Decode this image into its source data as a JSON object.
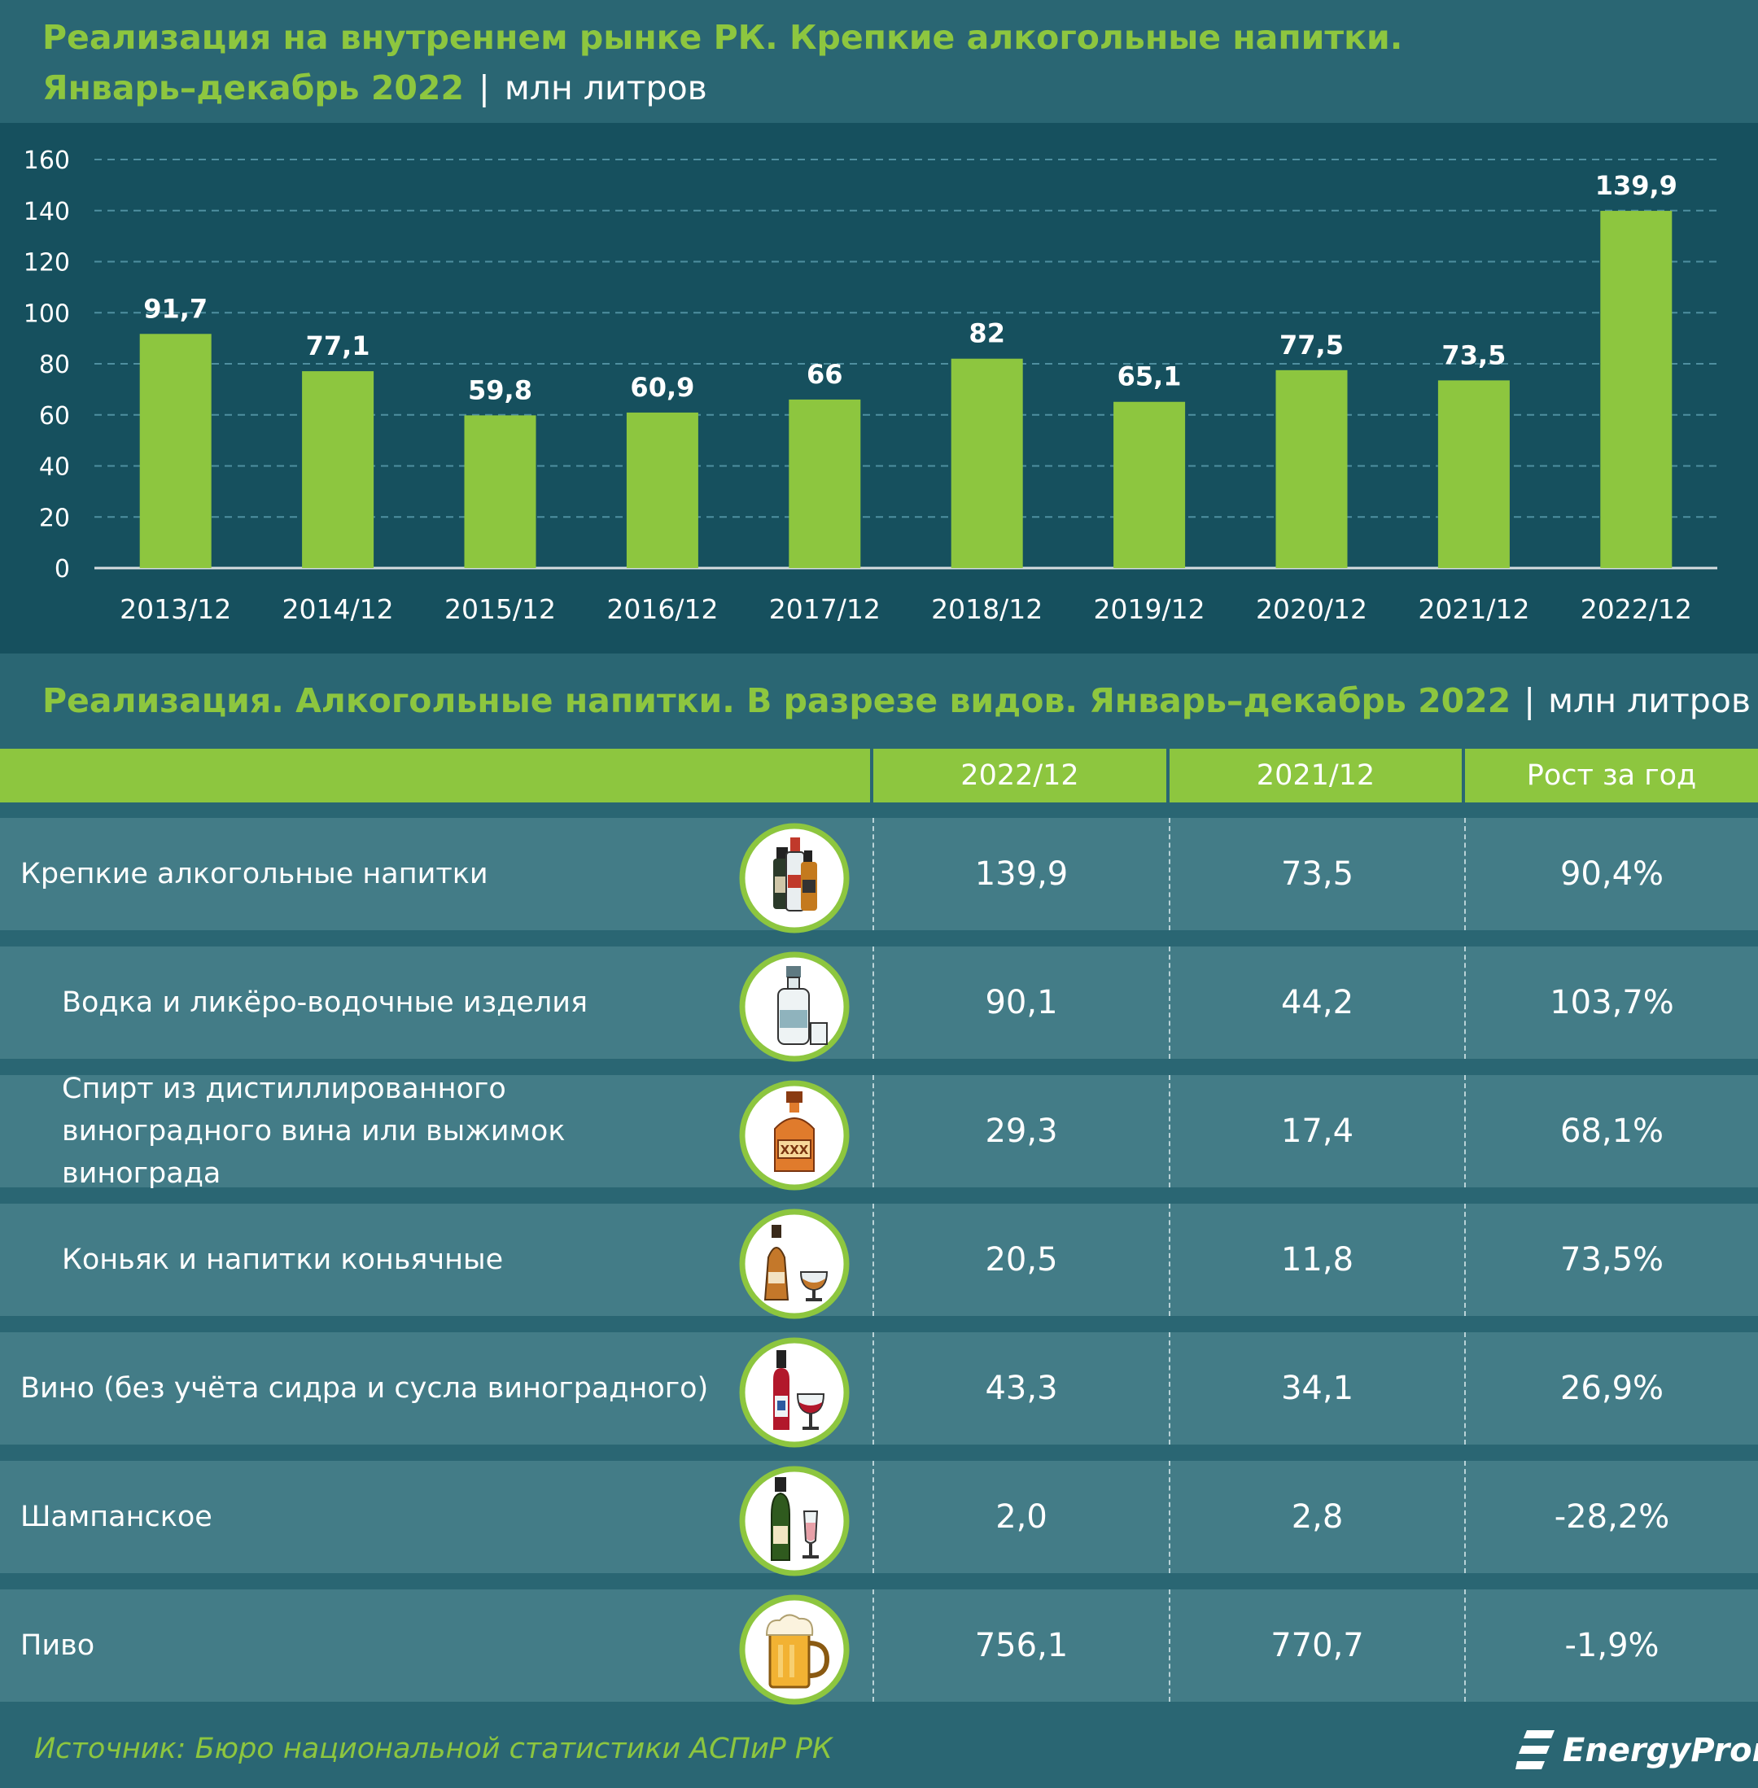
{
  "header": {
    "title_line1": "Реализация на внутреннем рынке РК. Крепкие алкогольные напитки.",
    "title_period": "Январь–декабрь 2022",
    "separator": "|",
    "unit": "млн литров"
  },
  "chart_data": {
    "type": "bar",
    "categories": [
      "2013/12",
      "2014/12",
      "2015/12",
      "2016/12",
      "2017/12",
      "2018/12",
      "2019/12",
      "2020/12",
      "2021/12",
      "2022/12"
    ],
    "values": [
      91.7,
      77.1,
      59.8,
      60.9,
      66,
      82,
      65.1,
      77.5,
      73.5,
      139.9
    ],
    "value_labels": [
      "91,7",
      "77,1",
      "59,8",
      "60,9",
      "66",
      "82",
      "65,1",
      "77,5",
      "73,5",
      "139,9"
    ],
    "yticks": [
      0,
      20,
      40,
      60,
      80,
      100,
      120,
      140,
      160
    ],
    "ylim": [
      0,
      160
    ],
    "grid": true,
    "bar_color": "#8dc63f",
    "title": "",
    "xlabel": "",
    "ylabel": ""
  },
  "table": {
    "title": "Реализация. Алкогольные напитки. В разрезе видов. Январь–декабрь 2022",
    "separator": "|",
    "unit": "млн литров",
    "columns": [
      "2022/12",
      "2021/12",
      "Рост за год"
    ],
    "rows": [
      {
        "label": "Крепкие алкогольные напитки",
        "indent": false,
        "icon": "bottles-icon",
        "v2022": "139,9",
        "v2021": "73,5",
        "growth": "90,4%"
      },
      {
        "label": "Водка и ликёро-водочные изделия",
        "indent": true,
        "icon": "vodka-bottle-icon",
        "v2022": "90,1",
        "v2021": "44,2",
        "growth": "103,7%"
      },
      {
        "label": "Спирт из дистиллированного виноградного вина или выжимок винограда",
        "indent": true,
        "icon": "xxx-bottle-icon",
        "v2022": "29,3",
        "v2021": "17,4",
        "growth": "68,1%"
      },
      {
        "label": "Коньяк и напитки коньячные",
        "indent": true,
        "icon": "cognac-icon",
        "v2022": "20,5",
        "v2021": "11,8",
        "growth": "73,5%"
      },
      {
        "label": "Вино (без учёта сидра и сусла виноградного)",
        "indent": false,
        "icon": "wine-icon",
        "v2022": "43,3",
        "v2021": "34,1",
        "growth": "26,9%"
      },
      {
        "label": "Шампанское",
        "indent": false,
        "icon": "champagne-icon",
        "v2022": "2,0",
        "v2021": "2,8",
        "growth": "-28,2%"
      },
      {
        "label": "Пиво",
        "indent": false,
        "icon": "beer-mug-icon",
        "v2022": "756,1",
        "v2021": "770,7",
        "growth": "-1,9%"
      }
    ]
  },
  "footer": {
    "source": "Источник: Бюро национальной статистики АСПиР РК",
    "logo": "EnergyProm"
  },
  "colors": {
    "accent_green": "#8dc63f",
    "background": "#2a6673",
    "chart_background": "#16505e",
    "row_background": "#437c87"
  }
}
